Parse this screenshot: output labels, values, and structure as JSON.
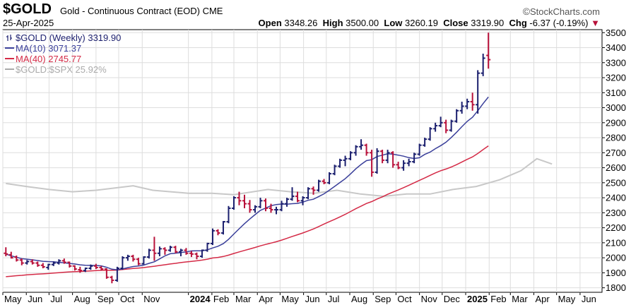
{
  "header": {
    "symbol": "$GOLD",
    "description": "Gold - Continuous Contract (EOD) CME",
    "brand": "StockCharts.com",
    "date": "25-Apr-2025",
    "ohlc": {
      "open_label": "Open",
      "open": "3348.26",
      "high_label": "High",
      "high": "3500.00",
      "low_label": "Low",
      "low": "3260.19",
      "close_label": "Close",
      "close": "3319.90",
      "chg_label": "Chg",
      "chg": "-6.37 (-0.19%)"
    }
  },
  "colors": {
    "up": "#1b1f6e",
    "down": "#b8113a",
    "ma10": "#3a3f9a",
    "ma40": "#d42a46",
    "rel": "#c8c8c8",
    "grid": "#dddddd"
  },
  "legend": [
    {
      "label": "$GOLD (Weekly) 3319.90",
      "color": "#1b1f6e",
      "icon": "ohlc-bars-icon"
    },
    {
      "label": "MA(10) 3071.37",
      "color": "#3a3f9a",
      "icon": "line-icon"
    },
    {
      "label": "MA(40) 2745.77",
      "color": "#d42a46",
      "icon": "line-icon"
    },
    {
      "label": "$GOLD:$SPX 25.92%",
      "color": "#aaaaaa",
      "icon": "line-icon"
    }
  ],
  "chart_data": {
    "type": "ohlc",
    "title": "$GOLD (Weekly)",
    "ylim": [
      1770,
      3520
    ],
    "y_ticks": [
      1800,
      1900,
      2000,
      2100,
      2200,
      2300,
      2400,
      2500,
      2600,
      2700,
      2800,
      2900,
      3000,
      3100,
      3200,
      3300,
      3400,
      3500
    ],
    "x_range": [
      "2023-05-01",
      "2025-06-30"
    ],
    "x_ticks": [
      {
        "label": "May",
        "date": "2023-05-01"
      },
      {
        "label": "Jun",
        "date": "2023-06-01"
      },
      {
        "label": "Jul",
        "date": "2023-07-01"
      },
      {
        "label": "Aug",
        "date": "2023-08-01"
      },
      {
        "label": "Sep",
        "date": "2023-09-01"
      },
      {
        "label": "Oct",
        "date": "2023-10-01"
      },
      {
        "label": "Nov",
        "date": "2023-11-01"
      },
      {
        "label": "2024",
        "date": "2024-01-01",
        "bold": true
      },
      {
        "label": "Feb",
        "date": "2024-02-01"
      },
      {
        "label": "Mar",
        "date": "2024-03-01"
      },
      {
        "label": "Apr",
        "date": "2024-04-01"
      },
      {
        "label": "May",
        "date": "2024-05-01"
      },
      {
        "label": "Jun",
        "date": "2024-06-01"
      },
      {
        "label": "Jul",
        "date": "2024-07-01"
      },
      {
        "label": "Aug",
        "date": "2024-08-01"
      },
      {
        "label": "Sep",
        "date": "2024-09-01"
      },
      {
        "label": "Oct",
        "date": "2024-10-01"
      },
      {
        "label": "Nov",
        "date": "2024-11-01"
      },
      {
        "label": "Dec",
        "date": "2024-12-01"
      },
      {
        "label": "2025",
        "date": "2025-01-01",
        "bold": true
      },
      {
        "label": "Feb",
        "date": "2025-02-01"
      },
      {
        "label": "Mar",
        "date": "2025-03-01"
      },
      {
        "label": "Apr",
        "date": "2025-04-01"
      },
      {
        "label": "May",
        "date": "2025-05-01"
      },
      {
        "label": "Jun",
        "date": "2025-06-01"
      }
    ],
    "grid": true,
    "legend_position": "top-left",
    "weekly_ohlc": {
      "start_date": "2023-05-05",
      "interval_days": 7,
      "bars": [
        [
          2030,
          2070,
          2010,
          2025
        ],
        [
          2020,
          2040,
          1995,
          2000
        ],
        [
          2005,
          2015,
          1975,
          1985
        ],
        [
          1985,
          1995,
          1950,
          1965
        ],
        [
          1965,
          1985,
          1955,
          1975
        ],
        [
          1975,
          1990,
          1955,
          1965
        ],
        [
          1965,
          1975,
          1940,
          1950
        ],
        [
          1950,
          1965,
          1930,
          1940
        ],
        [
          1935,
          1960,
          1920,
          1955
        ],
        [
          1955,
          1975,
          1945,
          1965
        ],
        [
          1965,
          1990,
          1955,
          1980
        ],
        [
          1980,
          1995,
          1960,
          1970
        ],
        [
          1970,
          1975,
          1935,
          1945
        ],
        [
          1945,
          1950,
          1915,
          1925
        ],
        [
          1920,
          1940,
          1900,
          1915
        ],
        [
          1915,
          1935,
          1905,
          1930
        ],
        [
          1930,
          1955,
          1920,
          1945
        ],
        [
          1945,
          1960,
          1925,
          1935
        ],
        [
          1935,
          1945,
          1915,
          1925
        ],
        [
          1925,
          1930,
          1860,
          1870
        ],
        [
          1870,
          1880,
          1830,
          1850
        ],
        [
          1850,
          1940,
          1840,
          1930
        ],
        [
          1930,
          2010,
          1920,
          2000
        ],
        [
          2000,
          2020,
          1980,
          2010
        ],
        [
          2010,
          2020,
          1975,
          1990
        ],
        [
          1990,
          2000,
          1950,
          1960
        ],
        [
          1960,
          2010,
          1955,
          2005
        ],
        [
          2005,
          2060,
          1995,
          2050
        ],
        [
          2050,
          2140,
          1980,
          2030
        ],
        [
          2030,
          2075,
          2010,
          2060
        ],
        [
          2060,
          2070,
          2020,
          2050
        ],
        [
          2050,
          2080,
          2040,
          2070
        ],
        [
          2070,
          2080,
          2030,
          2040
        ],
        [
          2040,
          2060,
          2010,
          2050
        ],
        [
          2050,
          2065,
          2020,
          2030
        ],
        [
          2030,
          2045,
          2005,
          2025
        ],
        [
          2025,
          2035,
          1990,
          2010
        ],
        [
          2010,
          2055,
          2000,
          2050
        ],
        [
          2050,
          2100,
          2040,
          2095
        ],
        [
          2095,
          2195,
          2085,
          2180
        ],
        [
          2180,
          2190,
          2150,
          2165
        ],
        [
          2165,
          2245,
          2155,
          2240
        ],
        [
          2240,
          2345,
          2230,
          2330
        ],
        [
          2330,
          2410,
          2320,
          2400
        ],
        [
          2400,
          2440,
          2350,
          2380
        ],
        [
          2380,
          2420,
          2330,
          2360
        ],
        [
          2360,
          2385,
          2300,
          2320
        ],
        [
          2320,
          2350,
          2300,
          2340
        ],
        [
          2340,
          2400,
          2330,
          2380
        ],
        [
          2380,
          2395,
          2310,
          2330
        ],
        [
          2330,
          2360,
          2300,
          2320
        ],
        [
          2320,
          2340,
          2290,
          2320
        ],
        [
          2320,
          2380,
          2310,
          2360
        ],
        [
          2360,
          2400,
          2340,
          2390
        ],
        [
          2390,
          2470,
          2380,
          2410
        ],
        [
          2410,
          2440,
          2370,
          2380
        ],
        [
          2380,
          2410,
          2350,
          2400
        ],
        [
          2400,
          2470,
          2390,
          2460
        ],
        [
          2460,
          2475,
          2420,
          2450
        ],
        [
          2450,
          2520,
          2440,
          2510
        ],
        [
          2510,
          2525,
          2490,
          2500
        ],
        [
          2500,
          2570,
          2490,
          2560
        ],
        [
          2560,
          2620,
          2550,
          2610
        ],
        [
          2610,
          2660,
          2600,
          2650
        ],
        [
          2650,
          2680,
          2610,
          2660
        ],
        [
          2660,
          2710,
          2650,
          2700
        ],
        [
          2700,
          2750,
          2680,
          2740
        ],
        [
          2740,
          2790,
          2720,
          2750
        ],
        [
          2750,
          2760,
          2680,
          2700
        ],
        [
          2700,
          2720,
          2540,
          2570
        ],
        [
          2570,
          2730,
          2560,
          2710
        ],
        [
          2710,
          2720,
          2630,
          2650
        ],
        [
          2650,
          2720,
          2630,
          2700
        ],
        [
          2700,
          2710,
          2600,
          2620
        ],
        [
          2620,
          2640,
          2590,
          2600
        ],
        [
          2600,
          2650,
          2580,
          2630
        ],
        [
          2630,
          2660,
          2610,
          2640
        ],
        [
          2640,
          2700,
          2630,
          2690
        ],
        [
          2690,
          2760,
          2680,
          2750
        ],
        [
          2750,
          2800,
          2740,
          2790
        ],
        [
          2790,
          2870,
          2780,
          2860
        ],
        [
          2860,
          2900,
          2840,
          2880
        ],
        [
          2880,
          2940,
          2870,
          2900
        ],
        [
          2900,
          2920,
          2830,
          2850
        ],
        [
          2850,
          2920,
          2840,
          2910
        ],
        [
          2910,
          2990,
          2900,
          2980
        ],
        [
          2980,
          3040,
          2960,
          3010
        ],
        [
          3010,
          3060,
          2990,
          3040
        ],
        [
          3040,
          3100,
          2980,
          3020
        ],
        [
          3020,
          3250,
          2960,
          3230
        ],
        [
          3230,
          3360,
          3210,
          3330
        ],
        [
          3348.26,
          3500,
          3260.19,
          3319.9
        ]
      ],
      "ma10_end": 3071.37,
      "ma40_end": 2745.77
    },
    "relative_line": {
      "name": "$GOLD:$SPX",
      "last": "25.92%",
      "approx_points": [
        [
          "2023-05-05",
          2495
        ],
        [
          "2023-06-01",
          2475
        ],
        [
          "2023-07-01",
          2455
        ],
        [
          "2023-08-01",
          2440
        ],
        [
          "2023-09-01",
          2450
        ],
        [
          "2023-10-20",
          2480
        ],
        [
          "2023-11-15",
          2450
        ],
        [
          "2024-01-01",
          2430
        ],
        [
          "2024-02-01",
          2430
        ],
        [
          "2024-03-01",
          2420
        ],
        [
          "2024-04-15",
          2455
        ],
        [
          "2024-05-15",
          2440
        ],
        [
          "2024-06-15",
          2430
        ],
        [
          "2024-07-15",
          2450
        ],
        [
          "2024-08-15",
          2425
        ],
        [
          "2024-09-15",
          2410
        ],
        [
          "2024-10-15",
          2425
        ],
        [
          "2024-11-15",
          2425
        ],
        [
          "2024-12-15",
          2455
        ],
        [
          "2025-01-15",
          2475
        ],
        [
          "2025-02-15",
          2520
        ],
        [
          "2025-03-15",
          2580
        ],
        [
          "2025-04-05",
          2660
        ],
        [
          "2025-04-25",
          2625
        ]
      ]
    }
  }
}
